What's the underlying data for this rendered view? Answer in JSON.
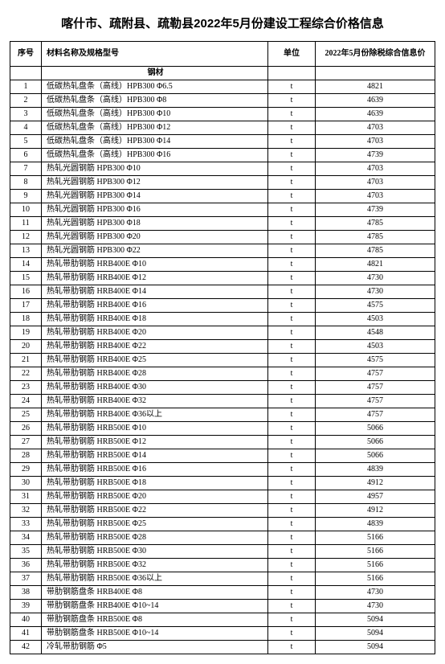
{
  "title": "喀什市、疏附县、疏勒县2022年5月份建设工程综合价格信息",
  "columns": {
    "seq": "序号",
    "name": "材料名称及规格型号",
    "unit": "单位",
    "price": "2022年5月份除税综合信息价"
  },
  "section_label": "钢材",
  "unit_value": "t",
  "rows": [
    {
      "seq": "1",
      "name": "低碳热轧盘条（高线）HPB300 Φ6.5",
      "price": "4821"
    },
    {
      "seq": "2",
      "name": "低碳热轧盘条（高线）HPB300 Φ8",
      "price": "4639"
    },
    {
      "seq": "3",
      "name": "低碳热轧盘条（高线）HPB300 Φ10",
      "price": "4639"
    },
    {
      "seq": "4",
      "name": "低碳热轧盘条（高线）HPB300 Φ12",
      "price": "4703"
    },
    {
      "seq": "5",
      "name": "低碳热轧盘条（高线）HPB300 Φ14",
      "price": "4703"
    },
    {
      "seq": "6",
      "name": "低碳热轧盘条（高线）HPB300 Φ16",
      "price": "4739"
    },
    {
      "seq": "7",
      "name": "热轧光圆钢筋 HPB300 Φ10",
      "price": "4703"
    },
    {
      "seq": "8",
      "name": "热轧光圆钢筋 HPB300 Φ12",
      "price": "4703"
    },
    {
      "seq": "9",
      "name": "热轧光圆钢筋 HPB300 Φ14",
      "price": "4703"
    },
    {
      "seq": "10",
      "name": "热轧光圆钢筋 HPB300 Φ16",
      "price": "4739"
    },
    {
      "seq": "11",
      "name": "热轧光圆钢筋 HPB300 Φ18",
      "price": "4785"
    },
    {
      "seq": "12",
      "name": "热轧光圆钢筋 HPB300 Φ20",
      "price": "4785"
    },
    {
      "seq": "13",
      "name": "热轧光圆钢筋 HPB300 Φ22",
      "price": "4785"
    },
    {
      "seq": "14",
      "name": "热轧带肋钢筋 HRB400E Φ10",
      "price": "4821"
    },
    {
      "seq": "15",
      "name": "热轧带肋钢筋 HRB400E Φ12",
      "price": "4730"
    },
    {
      "seq": "16",
      "name": "热轧带肋钢筋 HRB400E Φ14",
      "price": "4730"
    },
    {
      "seq": "17",
      "name": "热轧带肋钢筋 HRB400E Φ16",
      "price": "4575"
    },
    {
      "seq": "18",
      "name": "热轧带肋钢筋 HRB400E Φ18",
      "price": "4503"
    },
    {
      "seq": "19",
      "name": "热轧带肋钢筋 HRB400E Φ20",
      "price": "4548"
    },
    {
      "seq": "20",
      "name": "热轧带肋钢筋 HRB400E Φ22",
      "price": "4503"
    },
    {
      "seq": "21",
      "name": "热轧带肋钢筋 HRB400E Φ25",
      "price": "4575"
    },
    {
      "seq": "22",
      "name": "热轧带肋钢筋 HRB400E Φ28",
      "price": "4757"
    },
    {
      "seq": "23",
      "name": "热轧带肋钢筋 HRB400E Φ30",
      "price": "4757"
    },
    {
      "seq": "24",
      "name": "热轧带肋钢筋 HRB400E Φ32",
      "price": "4757"
    },
    {
      "seq": "25",
      "name": "热轧带肋钢筋 HRB400E Φ36以上",
      "price": "4757"
    },
    {
      "seq": "26",
      "name": "热轧带肋钢筋 HRB500E Φ10",
      "price": "5066"
    },
    {
      "seq": "27",
      "name": "热轧带肋钢筋 HRB500E Φ12",
      "price": "5066"
    },
    {
      "seq": "28",
      "name": "热轧带肋钢筋 HRB500E Φ14",
      "price": "5066"
    },
    {
      "seq": "29",
      "name": "热轧带肋钢筋 HRB500E Φ16",
      "price": "4839"
    },
    {
      "seq": "30",
      "name": "热轧带肋钢筋 HRB500E Φ18",
      "price": "4912"
    },
    {
      "seq": "31",
      "name": "热轧带肋钢筋 HRB500E Φ20",
      "price": "4957"
    },
    {
      "seq": "32",
      "name": "热轧带肋钢筋 HRB500E Φ22",
      "price": "4912"
    },
    {
      "seq": "33",
      "name": "热轧带肋钢筋 HRB500E Φ25",
      "price": "4839"
    },
    {
      "seq": "34",
      "name": "热轧带肋钢筋 HRB500E Φ28",
      "price": "5166"
    },
    {
      "seq": "35",
      "name": "热轧带肋钢筋 HRB500E Φ30",
      "price": "5166"
    },
    {
      "seq": "36",
      "name": "热轧带肋钢筋 HRB500E Φ32",
      "price": "5166"
    },
    {
      "seq": "37",
      "name": "热轧带肋钢筋 HRB500E Φ36以上",
      "price": "5166"
    },
    {
      "seq": "38",
      "name": "带肋钢筋盘条 HRB400E Φ8",
      "price": "4730"
    },
    {
      "seq": "39",
      "name": "带肋钢筋盘条 HRB400E Φ10~14",
      "price": "4730"
    },
    {
      "seq": "40",
      "name": "带肋钢筋盘条 HRB500E Φ8",
      "price": "5094"
    },
    {
      "seq": "41",
      "name": "带肋钢筋盘条 HRB500E Φ10~14",
      "price": "5094"
    },
    {
      "seq": "42",
      "name": "冷轧带肋钢筋 Φ5",
      "price": "5094"
    }
  ]
}
